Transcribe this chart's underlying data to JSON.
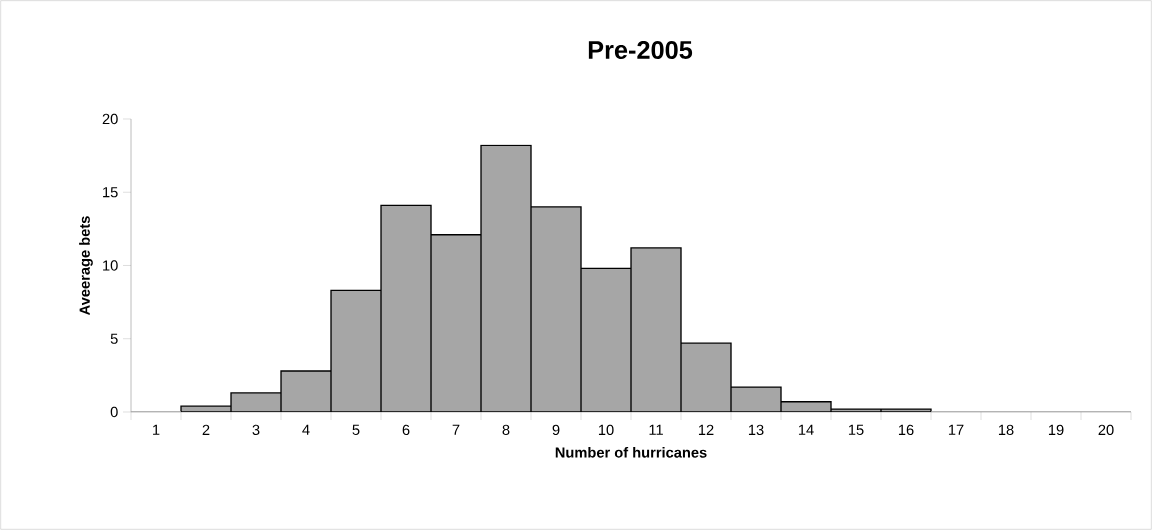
{
  "chart_data": {
    "type": "bar",
    "title": "Pre-2005",
    "xlabel": "Number of hurricanes",
    "ylabel": "Aveerage bets",
    "categories": [
      "1",
      "2",
      "3",
      "4",
      "5",
      "6",
      "7",
      "8",
      "9",
      "10",
      "11",
      "12",
      "13",
      "14",
      "15",
      "16",
      "17",
      "18",
      "19",
      "20"
    ],
    "values": [
      0,
      0.4,
      1.3,
      2.8,
      8.3,
      14.1,
      12.1,
      18.2,
      14.0,
      9.8,
      11.2,
      4.7,
      1.7,
      0.7,
      0.2,
      0.2,
      0,
      0,
      0,
      0
    ],
    "color": "#a6a6a6",
    "ylim": [
      0,
      20
    ],
    "yticks": [
      0,
      5,
      10,
      15,
      20
    ]
  }
}
